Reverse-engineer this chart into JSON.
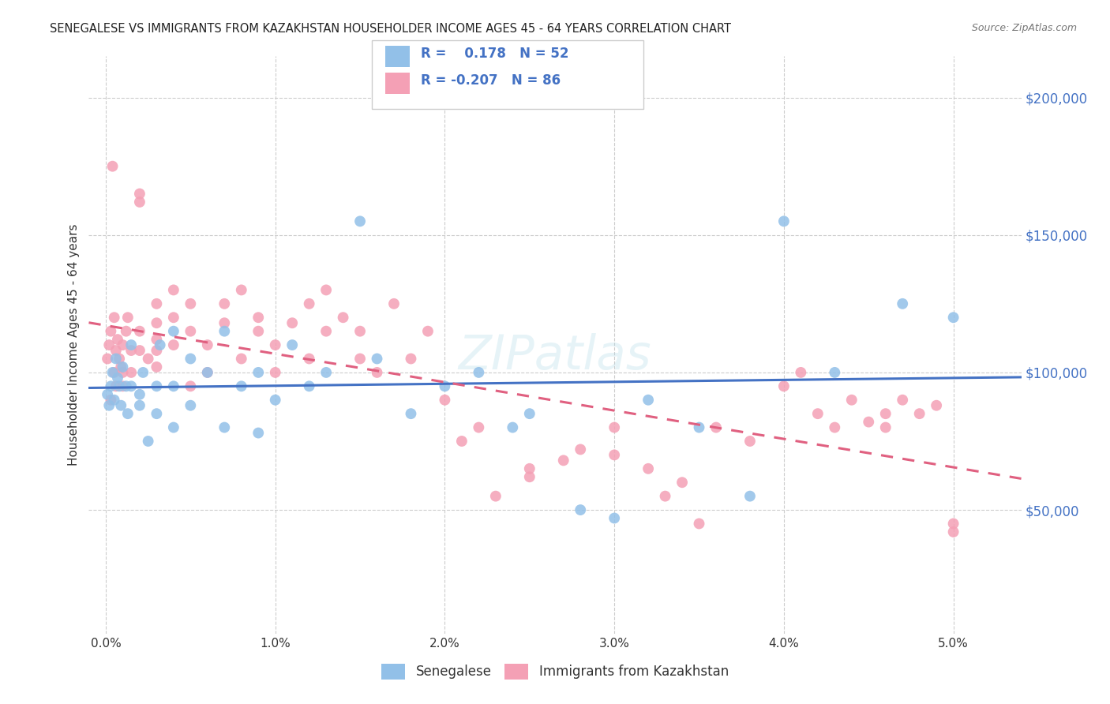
{
  "title": "SENEGALESE VS IMMIGRANTS FROM KAZAKHSTAN HOUSEHOLDER INCOME AGES 45 - 64 YEARS CORRELATION CHART",
  "source": "Source: ZipAtlas.com",
  "ylabel": "Householder Income Ages 45 - 64 years",
  "xlabel_ticks": [
    "0.0%",
    "1.0%",
    "2.0%",
    "3.0%",
    "4.0%",
    "5.0%"
  ],
  "xlabel_vals": [
    0.0,
    0.01,
    0.02,
    0.03,
    0.04,
    0.05
  ],
  "ytick_labels": [
    "$50,000",
    "$100,000",
    "$150,000",
    "$200,000"
  ],
  "ytick_vals": [
    50000,
    100000,
    150000,
    200000
  ],
  "xlim": [
    -0.001,
    0.054
  ],
  "ylim": [
    5000,
    215000
  ],
  "R_senegalese": 0.178,
  "N_senegalese": 52,
  "R_kazakhstan": -0.207,
  "N_kazakhstan": 86,
  "color_senegalese": "#92C0E8",
  "color_kazakhstan": "#F4A0B5",
  "color_senegalese_line": "#4472C4",
  "color_kazakhstan_line": "#E06080",
  "legend_label_1": "Senegalese",
  "legend_label_2": "Immigrants from Kazakhstan",
  "background_color": "#FFFFFF",
  "grid_color": "#CCCCCC",
  "watermark": "ZIPatlas",
  "scatter_senegalese_x": [
    0.0001,
    0.0002,
    0.0003,
    0.0004,
    0.0005,
    0.0006,
    0.0007,
    0.0008,
    0.0009,
    0.001,
    0.0012,
    0.0013,
    0.0015,
    0.0015,
    0.002,
    0.002,
    0.0022,
    0.0025,
    0.003,
    0.003,
    0.0032,
    0.004,
    0.004,
    0.004,
    0.005,
    0.005,
    0.006,
    0.007,
    0.007,
    0.008,
    0.009,
    0.009,
    0.01,
    0.011,
    0.012,
    0.013,
    0.015,
    0.016,
    0.018,
    0.02,
    0.022,
    0.024,
    0.025,
    0.028,
    0.03,
    0.032,
    0.035,
    0.038,
    0.04,
    0.043,
    0.047,
    0.05
  ],
  "scatter_senegalese_y": [
    92000,
    88000,
    95000,
    100000,
    90000,
    105000,
    98000,
    95000,
    88000,
    102000,
    95000,
    85000,
    110000,
    95000,
    92000,
    88000,
    100000,
    75000,
    85000,
    95000,
    110000,
    80000,
    115000,
    95000,
    88000,
    105000,
    100000,
    80000,
    115000,
    95000,
    100000,
    78000,
    90000,
    110000,
    95000,
    100000,
    155000,
    105000,
    85000,
    95000,
    100000,
    80000,
    85000,
    50000,
    47000,
    90000,
    80000,
    55000,
    155000,
    100000,
    125000,
    120000
  ],
  "scatter_kazakhstan_x": [
    0.0001,
    0.0002,
    0.0003,
    0.0004,
    0.0005,
    0.0005,
    0.0006,
    0.0007,
    0.0008,
    0.0009,
    0.001,
    0.001,
    0.0012,
    0.0013,
    0.0015,
    0.0015,
    0.002,
    0.002,
    0.002,
    0.0025,
    0.003,
    0.003,
    0.003,
    0.003,
    0.004,
    0.004,
    0.004,
    0.005,
    0.005,
    0.005,
    0.006,
    0.006,
    0.007,
    0.007,
    0.008,
    0.008,
    0.009,
    0.009,
    0.01,
    0.01,
    0.011,
    0.012,
    0.012,
    0.013,
    0.013,
    0.014,
    0.015,
    0.015,
    0.016,
    0.017,
    0.018,
    0.019,
    0.02,
    0.021,
    0.022,
    0.023,
    0.025,
    0.025,
    0.027,
    0.028,
    0.03,
    0.03,
    0.032,
    0.033,
    0.034,
    0.035,
    0.036,
    0.038,
    0.04,
    0.041,
    0.042,
    0.043,
    0.044,
    0.045,
    0.046,
    0.047,
    0.048,
    0.049,
    0.05,
    0.05,
    0.0003,
    0.0006,
    0.001,
    0.002,
    0.003,
    0.046
  ],
  "scatter_kazakhstan_y": [
    105000,
    110000,
    115000,
    175000,
    120000,
    100000,
    108000,
    112000,
    105000,
    102000,
    110000,
    95000,
    115000,
    120000,
    108000,
    100000,
    162000,
    165000,
    115000,
    105000,
    108000,
    112000,
    118000,
    125000,
    110000,
    120000,
    130000,
    125000,
    115000,
    95000,
    110000,
    100000,
    118000,
    125000,
    105000,
    130000,
    115000,
    120000,
    110000,
    100000,
    118000,
    125000,
    105000,
    130000,
    115000,
    120000,
    105000,
    115000,
    100000,
    125000,
    105000,
    115000,
    90000,
    75000,
    80000,
    55000,
    65000,
    62000,
    68000,
    72000,
    80000,
    70000,
    65000,
    55000,
    60000,
    45000,
    80000,
    75000,
    95000,
    100000,
    85000,
    80000,
    90000,
    82000,
    85000,
    90000,
    85000,
    88000,
    45000,
    42000,
    90000,
    95000,
    100000,
    108000,
    102000,
    80000
  ]
}
